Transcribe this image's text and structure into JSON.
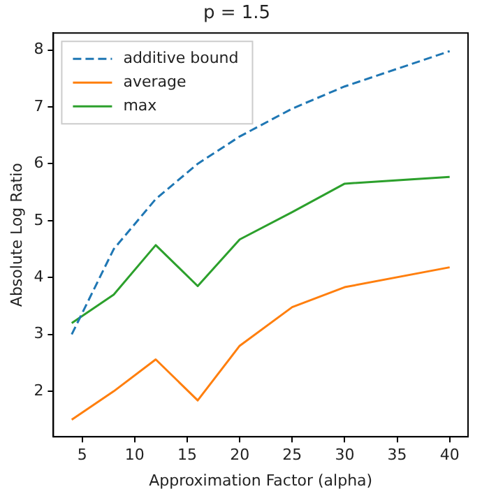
{
  "chart_data": {
    "type": "line",
    "title": "p = 1.5",
    "xlabel": "Approximation Factor (alpha)",
    "ylabel": "Absolute Log Ratio",
    "x": [
      4,
      8,
      12,
      16,
      20,
      25,
      30,
      40
    ],
    "series": [
      {
        "name": "additive bound",
        "color": "#1f77b4",
        "line_style": "dashed",
        "values": [
          3.0,
          4.5,
          5.38,
          6.0,
          6.48,
          6.97,
          7.36,
          7.98
        ]
      },
      {
        "name": "average",
        "color": "#ff7f0e",
        "values": [
          1.5,
          2.0,
          2.56,
          1.84,
          2.8,
          3.48,
          3.83,
          4.18
        ]
      },
      {
        "name": "max",
        "color": "#2ca02c",
        "values": [
          3.2,
          3.7,
          4.57,
          3.85,
          4.67,
          5.15,
          5.65,
          5.77
        ]
      }
    ],
    "xlim": [
      2.25,
      41.75
    ],
    "xticks": [
      5,
      10,
      15,
      20,
      25,
      30,
      35,
      40
    ],
    "ylim": [
      1.2,
      8.3
    ],
    "yticks": [
      2,
      3,
      4,
      5,
      6,
      7,
      8
    ],
    "grid": false,
    "legend": "top left",
    "marker": "none"
  }
}
